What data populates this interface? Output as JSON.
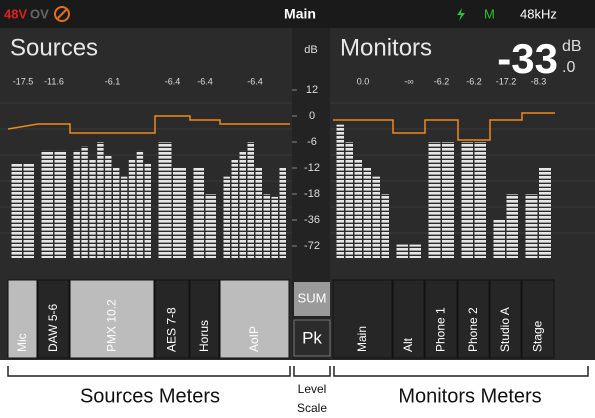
{
  "status": {
    "phantom": "48V",
    "overload": "OV",
    "title": "Main",
    "mode": "M",
    "rate": "48kHz"
  },
  "sources": {
    "title": "Sources",
    "channels": [
      {
        "name": "Mic",
        "level": "-17.5",
        "meters": [
          -11,
          -11
        ]
      },
      {
        "name": "DAW 5-6",
        "level": "-11.6",
        "meters": [
          -8,
          -8
        ]
      },
      {
        "name": "PMX 10.2",
        "level": "-6.1",
        "meters": [
          -8,
          -7,
          -10,
          -6,
          -9,
          -12,
          -14,
          -10,
          -8,
          -11
        ]
      },
      {
        "name": "AES 7-8",
        "level": "-6.4",
        "meters": [
          -6,
          -12
        ]
      },
      {
        "name": "Horus",
        "level": "-6.4",
        "meters": [
          -12,
          -18
        ]
      },
      {
        "name": "AoIP",
        "level": "-6.4",
        "meters": [
          -14,
          -10,
          -8,
          -6,
          -12,
          -18,
          -20,
          -12
        ]
      }
    ]
  },
  "scale": {
    "unit": "dB",
    "ticks": [
      12,
      0,
      -6,
      -12,
      -18,
      -36,
      -72
    ],
    "sum": "SUM",
    "peak": "Pk"
  },
  "monitors": {
    "title": "Monitors",
    "level": "-33",
    "unit": "dB",
    "decimal": ".0",
    "channels": [
      {
        "name": "Main",
        "level": "0.0",
        "meters": [
          -2,
          -6,
          -10,
          -12,
          -14,
          -18
        ]
      },
      {
        "name": "Alt",
        "level": "-∞",
        "meters": [
          -70,
          -70
        ]
      },
      {
        "name": "Phone 1",
        "level": "-6.2",
        "meters": [
          -6,
          -6
        ]
      },
      {
        "name": "Phone 2",
        "level": "-6.2",
        "meters": [
          -6,
          -6
        ]
      },
      {
        "name": "Studio A",
        "level": "-17.2",
        "meters": [
          -36,
          -18
        ]
      },
      {
        "name": "Stage",
        "level": "-8.3",
        "meters": [
          -18,
          -12
        ]
      }
    ]
  },
  "legend": {
    "sources": "Sources Meters",
    "scale_1": "Level",
    "scale_2": "Scale",
    "monitors": "Monitors Meters"
  }
}
